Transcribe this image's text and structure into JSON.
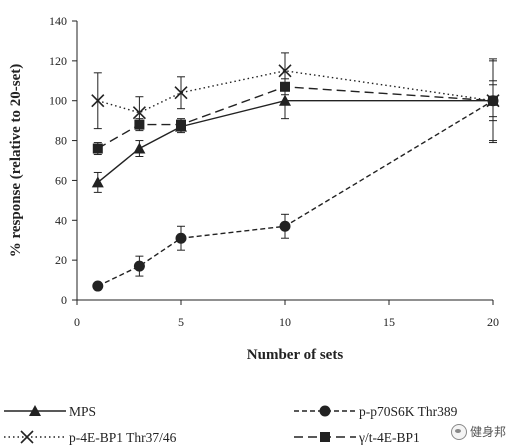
{
  "chart_data": {
    "type": "line",
    "xlabel": "Number of sets",
    "ylabel": "% response (relative to 20-set)",
    "xlim": [
      0,
      20
    ],
    "ylim": [
      0,
      140
    ],
    "xticks": [
      0,
      5,
      10,
      15,
      20
    ],
    "yticks": [
      0,
      20,
      40,
      60,
      80,
      100,
      120,
      140
    ],
    "grid": false,
    "legend_position": "bottom",
    "x": [
      1,
      3,
      5,
      10,
      20
    ],
    "series": [
      {
        "name": "MPS",
        "marker": "triangle",
        "line": "solid",
        "values": [
          59,
          76,
          87,
          100,
          100
        ],
        "errors": [
          5,
          4,
          3,
          9,
          20
        ]
      },
      {
        "name": "p-p70S6K Thr389",
        "marker": "circle",
        "line": "dashed",
        "values": [
          7,
          17,
          31,
          37,
          100
        ],
        "errors": [
          1,
          5,
          6,
          6,
          21
        ]
      },
      {
        "name": "p-4E-BP1 Thr37/46",
        "marker": "x",
        "line": "dotted",
        "values": [
          100,
          94,
          104,
          115,
          100
        ],
        "errors": [
          14,
          8,
          8,
          9,
          8
        ]
      },
      {
        "name": "γ/t-4E-BP1",
        "marker": "square",
        "line": "dash",
        "values": [
          76,
          88,
          88,
          107,
          100
        ],
        "errors": [
          3,
          3,
          3,
          4,
          10
        ]
      }
    ]
  },
  "watermark": {
    "text": "健身邦",
    "icon": "wechat-icon"
  }
}
